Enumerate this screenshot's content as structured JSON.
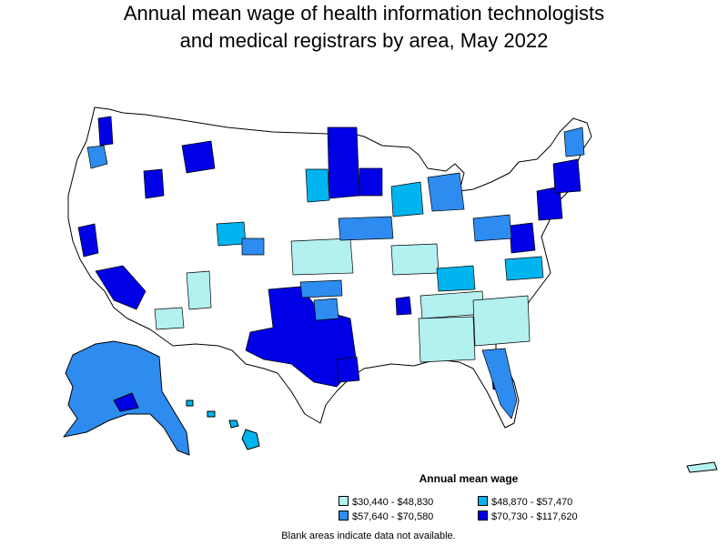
{
  "title": {
    "line1": "Annual mean wage of health information technologists",
    "line2": "and medical registrars by area, May 2022"
  },
  "legend": {
    "title": "Annual mean wage",
    "items": [
      {
        "label": "$30,440 - $48,830",
        "color": "#b3f0f0"
      },
      {
        "label": "$48,870 - $57,470",
        "color": "#00b4f0"
      },
      {
        "label": "$57,640 - $70,580",
        "color": "#2e8cf0"
      },
      {
        "label": "$70,730 - $117,620",
        "color": "#0000e6"
      }
    ]
  },
  "note": "Blank areas indicate data not available."
}
